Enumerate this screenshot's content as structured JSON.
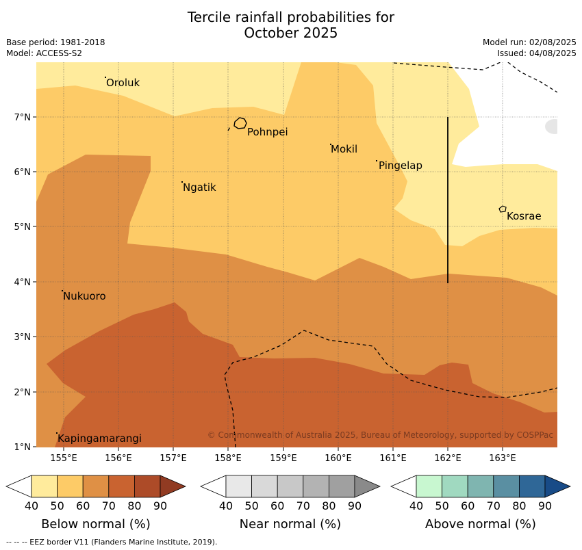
{
  "title_line1": "Tercile rainfall probabilities for",
  "title_line2": "October 2025",
  "meta": {
    "base_period": "Base period: 1981-2018",
    "model": "Model: ACCESS-S2",
    "model_run": "Model run: 02/08/2025",
    "issued": "Issued: 04/08/2025"
  },
  "map": {
    "lon_ticks": [
      "155°E",
      "156°E",
      "157°E",
      "158°E",
      "159°E",
      "160°E",
      "161°E",
      "162°E",
      "163°E"
    ],
    "lat_ticks": [
      "7°N",
      "6°N",
      "5°N",
      "4°N",
      "3°N",
      "2°N",
      "1°N"
    ],
    "places": [
      "Oroluk",
      "Pohnpei",
      "Mokil",
      "Pingelap",
      "Ngatik",
      "Kosrae",
      "Nukuoro",
      "Kapingamarangi"
    ],
    "copyright": "© Commonwealth of Australia 2025, Bureau of Meteorology, supported by COSPPac",
    "colors": {
      "below_40_50": "#ffeb9c",
      "below_50_60": "#fdcb67",
      "below_60_70": "#df9045",
      "below_70_80": "#c96330",
      "below_80_90": "#ad4b28",
      "below_90": "#913b22"
    }
  },
  "colorbars": [
    {
      "title": "Below normal (%)",
      "ticks": [
        "40",
        "50",
        "60",
        "70",
        "80",
        "90"
      ],
      "colors": [
        "#ffeb9c",
        "#fdcb67",
        "#df9045",
        "#c96330",
        "#ad4b28"
      ],
      "over": "#913b22"
    },
    {
      "title": "Near normal (%)",
      "ticks": [
        "40",
        "50",
        "60",
        "70",
        "80",
        "90"
      ],
      "colors": [
        "#e8e8e8",
        "#d9d9d9",
        "#c8c8c8",
        "#b3b3b3",
        "#a0a0a0"
      ],
      "over": "#8a8a8a"
    },
    {
      "title": "Above normal (%)",
      "ticks": [
        "40",
        "50",
        "60",
        "70",
        "80",
        "90"
      ],
      "colors": [
        "#c8f7d0",
        "#a0d9c0",
        "#7fb5b0",
        "#5a8fa2",
        "#2f6797"
      ],
      "over": "#184b87"
    }
  ],
  "footnote": "--  --  -- EEZ border V11 (Flanders Marine Institute, 2019)."
}
